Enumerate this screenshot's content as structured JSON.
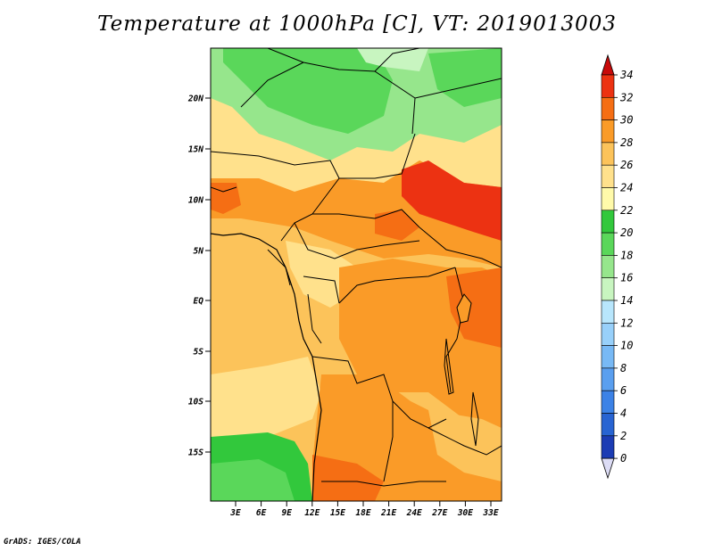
{
  "title": "Temperature at 1000hPa [C], VT: 2019013003",
  "credit": "GrADS: IGES/COLA",
  "map": {
    "lat_ticks": [
      "20N",
      "15N",
      "10N",
      "5N",
      "EQ",
      "5S",
      "10S",
      "15S"
    ],
    "lon_ticks": [
      "3E",
      "6E",
      "9E",
      "12E",
      "15E",
      "18E",
      "21E",
      "24E",
      "27E",
      "30E",
      "33E"
    ]
  },
  "colorbar": {
    "labels": [
      "0",
      "2",
      "4",
      "6",
      "8",
      "10",
      "12",
      "14",
      "16",
      "18",
      "20",
      "22",
      "24",
      "26",
      "28",
      "30",
      "32",
      "34"
    ],
    "colors": [
      "#0a0a78",
      "#1c3cb4",
      "#2864d2",
      "#3c82e6",
      "#5a9fef",
      "#78b9f5",
      "#98d0fa",
      "#b8e6fc",
      "#c8f5c0",
      "#96e68c",
      "#5ad75a",
      "#32c83c",
      "#fffaaa",
      "#ffe18c",
      "#fcc35a",
      "#fa9b28",
      "#f56e14",
      "#ec3212",
      "#c80a0a"
    ]
  },
  "regions": {
    "green_north": "#5ad75a",
    "light_green": "#96e68c",
    "pale_green": "#c8f5c0",
    "pale_yellow": "#ffe18c",
    "light_orange": "#fcc35a",
    "orange": "#fa9b28",
    "dark_orange": "#f56e14",
    "red": "#ec3212",
    "sw_green": "#32c83c"
  }
}
